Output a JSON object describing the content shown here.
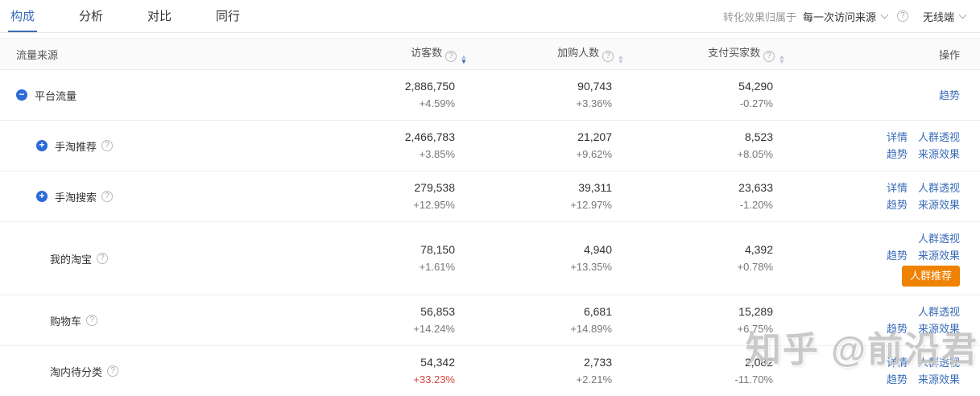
{
  "tabs": [
    {
      "label": "构成",
      "active": true
    },
    {
      "label": "分析",
      "active": false
    },
    {
      "label": "对比",
      "active": false
    },
    {
      "label": "同行",
      "active": false
    }
  ],
  "toolbar": {
    "attribution_label": "转化效果归属于",
    "attribution_value": "每一次访问来源",
    "device_value": "无线端"
  },
  "table": {
    "headers": {
      "source": "流量来源",
      "visitors": "访客数",
      "cart": "加购人数",
      "buyers": "支付买家数",
      "actions": "操作"
    },
    "sort": {
      "column": "访客数",
      "direction": "desc"
    },
    "rows": [
      {
        "name": "平台流量",
        "level": 0,
        "toggle": "minus",
        "help": false,
        "visitors": "2,886,750",
        "visitors_delta": "+4.59%",
        "visitors_delta_red": false,
        "cart": "90,743",
        "cart_delta": "+3.36%",
        "buyers": "54,290",
        "buyers_delta": "-0.27%",
        "action_lines": [
          [
            "趋势"
          ]
        ],
        "badge": null
      },
      {
        "name": "手淘推荐",
        "level": 1,
        "toggle": "plus",
        "help": true,
        "visitors": "2,466,783",
        "visitors_delta": "+3.85%",
        "visitors_delta_red": false,
        "cart": "21,207",
        "cart_delta": "+9.62%",
        "buyers": "8,523",
        "buyers_delta": "+8.05%",
        "action_lines": [
          [
            "详情",
            "人群透视"
          ],
          [
            "趋势",
            "来源效果"
          ]
        ],
        "badge": null
      },
      {
        "name": "手淘搜索",
        "level": 1,
        "toggle": "plus",
        "help": true,
        "visitors": "279,538",
        "visitors_delta": "+12.95%",
        "visitors_delta_red": false,
        "cart": "39,311",
        "cart_delta": "+12.97%",
        "buyers": "23,633",
        "buyers_delta": "-1.20%",
        "action_lines": [
          [
            "详情",
            "人群透视"
          ],
          [
            "趋势",
            "来源效果"
          ]
        ],
        "badge": null
      },
      {
        "name": "我的淘宝",
        "level": 1,
        "toggle": null,
        "help": true,
        "visitors": "78,150",
        "visitors_delta": "+1.61%",
        "visitors_delta_red": false,
        "cart": "4,940",
        "cart_delta": "+13.35%",
        "buyers": "4,392",
        "buyers_delta": "+0.78%",
        "action_lines": [
          [
            "人群透视"
          ],
          [
            "趋势",
            "来源效果"
          ]
        ],
        "badge": "人群推荐"
      },
      {
        "name": "购物车",
        "level": 1,
        "toggle": null,
        "help": true,
        "visitors": "56,853",
        "visitors_delta": "+14.24%",
        "visitors_delta_red": false,
        "cart": "6,681",
        "cart_delta": "+14.89%",
        "buyers": "15,289",
        "buyers_delta": "+6.75%",
        "action_lines": [
          [
            "人群透视"
          ],
          [
            "趋势",
            "来源效果"
          ]
        ],
        "badge": null
      },
      {
        "name": "淘内待分类",
        "level": 1,
        "toggle": null,
        "help": true,
        "visitors": "54,342",
        "visitors_delta": "+33.23%",
        "visitors_delta_red": true,
        "cart": "2,733",
        "cart_delta": "+2.21%",
        "buyers": "2,082",
        "buyers_delta": "-11.70%",
        "action_lines": [
          [
            "详情",
            "人群透视"
          ],
          [
            "趋势",
            "来源效果"
          ]
        ],
        "badge": null
      }
    ]
  },
  "watermark": "知乎 @前沿君",
  "colors": {
    "accent_blue": "#3a6cb8",
    "icon_blue": "#2b6bd9",
    "badge_orange": "#ef8201",
    "delta_red": "#d0453a"
  }
}
